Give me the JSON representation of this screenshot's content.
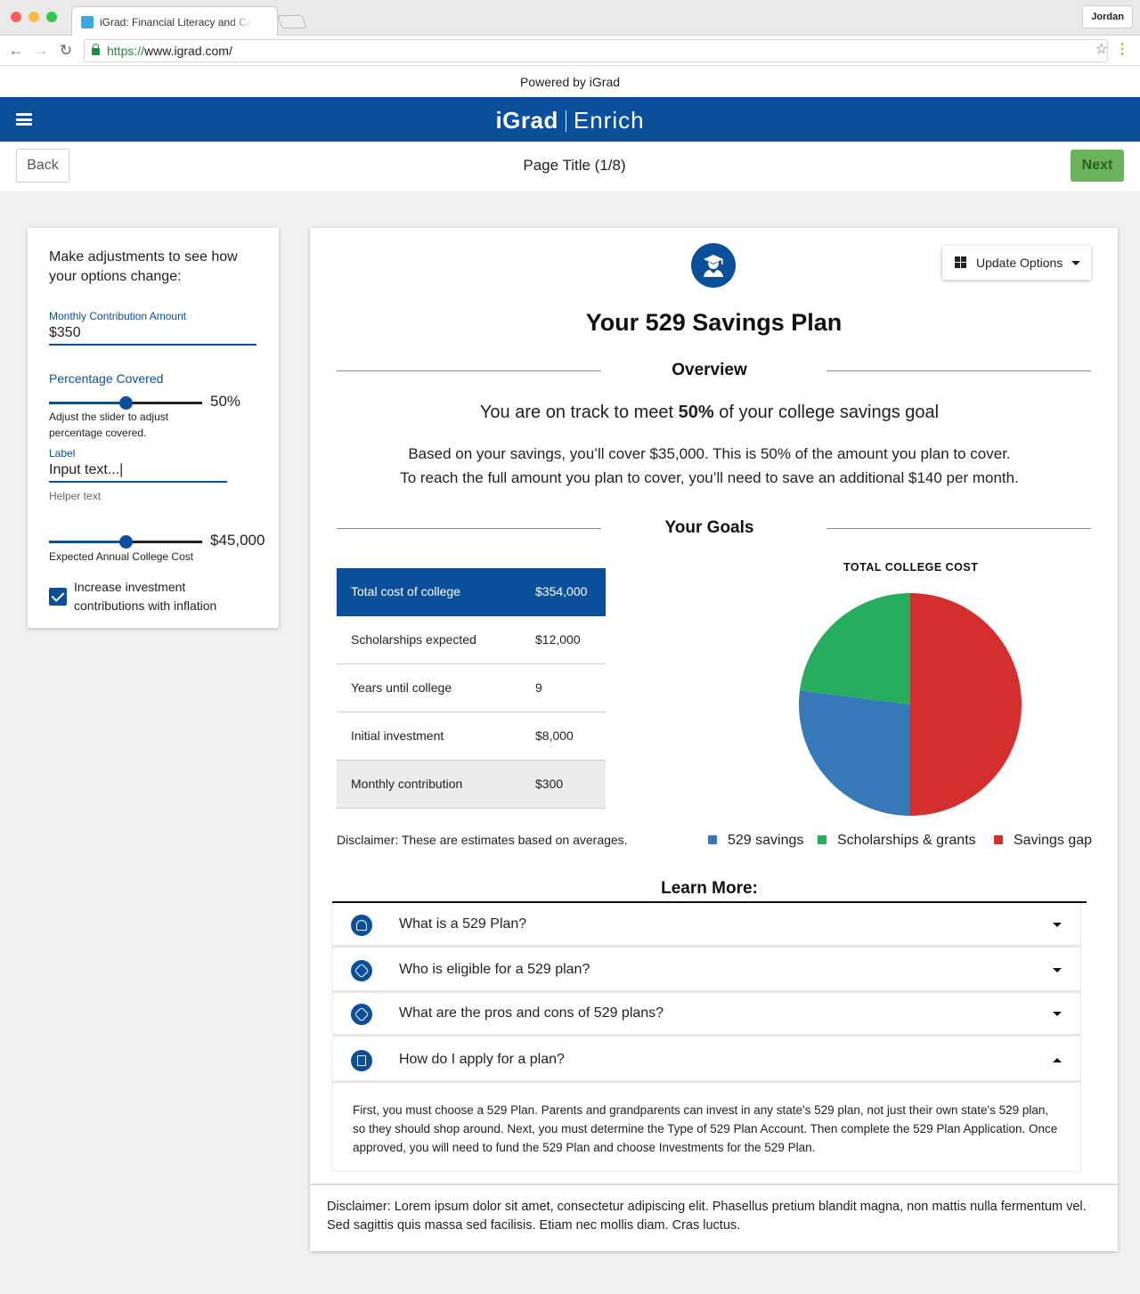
{
  "browser": {
    "tab_title": "iGrad: Financial Literacy and Ca",
    "profile_name": "Jordan",
    "url_scheme": "https://",
    "url_host": "www.igrad.com/"
  },
  "app": {
    "powered_by": "Powered by iGrad",
    "logo_left": "iGrad",
    "logo_right": "Enrich",
    "back_label": "Back",
    "page_title": "Page Title (1/8)",
    "next_label": "Next"
  },
  "adjustments": {
    "heading": "Make adjustments to see how your options change:",
    "monthly_label": "Monthly Contribution Amount",
    "monthly_value": "$350",
    "percentage_label": "Percentage Covered",
    "percentage_value": "50%",
    "percentage_level": 50,
    "slider_hint": "Adjust the slider to adjust percentage covered.",
    "input_label": "Label",
    "input_value": "Input text...|",
    "helper_text": "Helper text",
    "college_cost_value": "$45,000",
    "college_cost_level": 50,
    "college_cost_label": "Expected Annual College Cost",
    "inflation_label": "Increase investment contributions with inflation",
    "inflation_checked": true
  },
  "plan": {
    "update_options": "Update Options",
    "title": "Your 529 Savings Plan",
    "overview_title": "Overview",
    "track_pre": "You are on track to meet ",
    "track_pct": "50%",
    "track_post": " of your college savings goal",
    "desc_line1": "Based on your savings, you’ll cover $35,000. This is 50% of the amount you plan to cover.",
    "desc_line2": "To reach the full amount you plan to cover, you’ll need to save an additional $140 per month.",
    "goals_title": "Your Goals",
    "goals": [
      {
        "label": "Total cost of college",
        "value": "$354,000"
      },
      {
        "label": "Scholarships expected",
        "value": "$12,000"
      },
      {
        "label": "Years until college",
        "value": "9"
      },
      {
        "label": "Initial investment",
        "value": "$8,000"
      },
      {
        "label": "Monthly contribution",
        "value": "$300"
      }
    ],
    "disclaimer": "Disclaimer: These are estimates based on averages."
  },
  "chart_data": {
    "type": "pie",
    "title": "TOTAL COLLEGE COST",
    "series": [
      {
        "name": "529 savings",
        "value": 27,
        "color": "#3679b8"
      },
      {
        "name": "Scholarships & grants",
        "value": 23,
        "color": "#26ad5e"
      },
      {
        "name": "Savings gap",
        "value": 50,
        "color": "#d32f2f"
      }
    ],
    "legend_position": "bottom"
  },
  "learn_more": {
    "title": "Learn More:",
    "items": [
      {
        "label": "What is a 529 Plan?",
        "icon": "gauge-icon",
        "expanded": false
      },
      {
        "label": "Who is eligible for a 529 plan?",
        "icon": "tag-dollar-icon",
        "expanded": false
      },
      {
        "label": "What are the pros and cons of 529 plans?",
        "icon": "tag-dollar-icon",
        "expanded": false
      },
      {
        "label": "How do I apply for a plan?",
        "icon": "document-icon",
        "expanded": true
      }
    ],
    "answer": "First, you must choose a 529 Plan. Parents and grandparents can invest in any state's 529 plan, not just their own state's 529 plan, so they should shop around. Next, you must determine the Type of 529 Plan Account. Then complete the 529 Plan Application. Once approved, you will need to fund the 529 Plan and choose Investments for the 529 Plan."
  },
  "footer": {
    "disclaimer": "Disclaimer: Lorem ipsum dolor sit amet, consectetur adipiscing elit. Phasellus pretium blandit magna, non mattis nulla fermentum vel. Sed sagittis quis massa sed facilisis. Etiam nec mollis diam. Cras luctus."
  },
  "colors": {
    "brand_blue": "#0a4f9a",
    "next_green": "#6bb35a"
  }
}
